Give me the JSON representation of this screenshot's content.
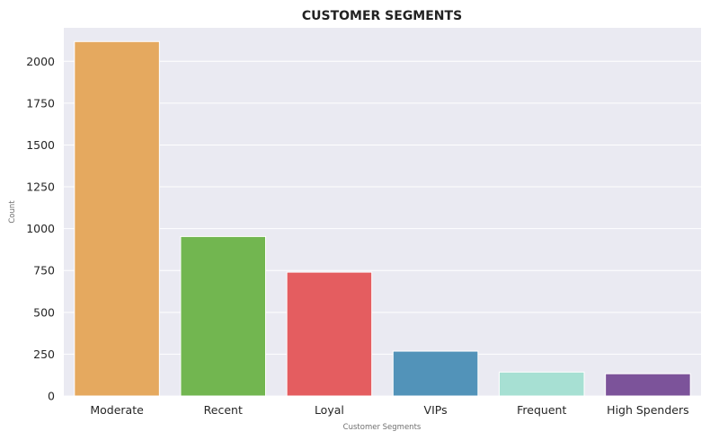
{
  "chart_data": {
    "type": "bar",
    "title": "CUSTOMER SEGMENTS",
    "xlabel": "Customer Segments",
    "ylabel": "Count",
    "categories": [
      "Moderate",
      "Recent",
      "Loyal",
      "VIPs",
      "Frequent",
      "High Spenders"
    ],
    "values": [
      2118,
      953,
      740,
      268,
      143,
      133
    ],
    "colors": [
      "#e5a95f",
      "#72b650",
      "#e45d60",
      "#5293b9",
      "#a7e0d3",
      "#7c539a"
    ],
    "ylim": [
      0,
      2200
    ],
    "yticks": [
      0,
      250,
      500,
      750,
      1000,
      1250,
      1500,
      1750,
      2000
    ],
    "grid": true,
    "background": "#eaeaf2"
  }
}
